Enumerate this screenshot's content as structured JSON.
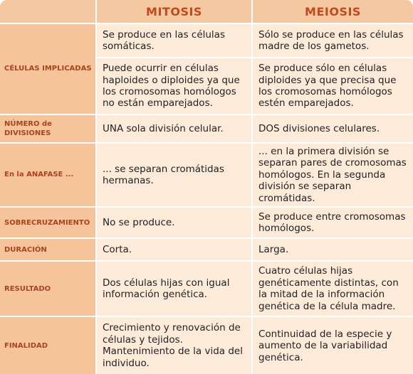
{
  "headers": {
    "mitosis": "MITOSIS",
    "meiosis": "MEIOSIS"
  },
  "rows": {
    "celulas": {
      "label": "CÉLULAS IMPLICADAS",
      "mitosis_1": "Se produce en las células somáticas.",
      "meiosis_1": "Sólo se produce en las células madre de los gametos.",
      "mitosis_2": "Puede ocurrir en células haploides o diploides ya que los cromosomas homólogos no están emparejados.",
      "meiosis_2": "Se produce sólo en células diploides ya que precisa que los cromosomas homólogos estén emparejados."
    },
    "divisiones": {
      "label": "NÚMERO de DIVISIONES",
      "mitosis": "UNA sola división celular.",
      "meiosis": "DOS divisiones celulares."
    },
    "anafase": {
      "label": "En la ANAFASE ...",
      "mitosis": "... se separan cromátidas hermanas.",
      "meiosis": "... en la primera división se separan pares de cromosomas homólogos. En la segunda división se separan cromátidas."
    },
    "sobrecruzamiento": {
      "label": "SOBRECRUZAMIENTO",
      "mitosis": "No se produce.",
      "meiosis": "Se produce entre cromosomas homólogos."
    },
    "duracion": {
      "label": "DURACIÓN",
      "mitosis": "Corta.",
      "meiosis": "Larga."
    },
    "resultado": {
      "label": "RESULTADO",
      "mitosis": "Dos células hijas con igual información genética.",
      "meiosis": "Cuatro células hijas genéticamente distintas, con la mitad de la información genética de la célula madre."
    },
    "finalidad": {
      "label": "FINALIDAD",
      "mitosis": "Crecimiento y renovación de células y tejidos. Mantenimiento de la vida del individuo.",
      "meiosis": "Continuidad de la especie y aumento de la variabilidad genética."
    }
  }
}
